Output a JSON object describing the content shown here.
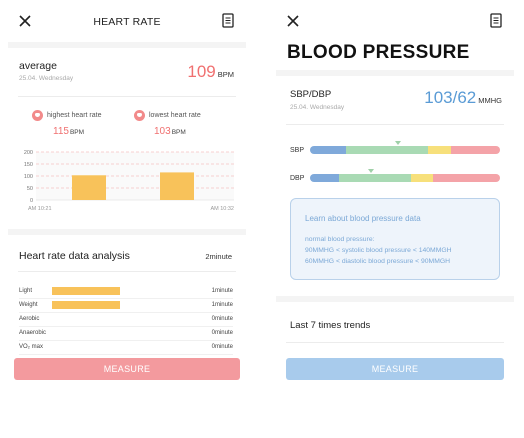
{
  "heart_rate_screen": {
    "title": "HEART RATE",
    "average_label": "average",
    "date": "25.04.   Wednesday",
    "average_value": "109",
    "average_unit": "BPM",
    "highest_label": "highest heart rate",
    "highest_value": "115",
    "highest_unit": "BPM",
    "lowest_label": "lowest heart rate",
    "lowest_value": "103",
    "lowest_unit": "BPM",
    "chart": {
      "y_ticks": [
        "200",
        "150",
        "100",
        "50",
        "0"
      ],
      "x_start": "AM 10:21",
      "x_end": "AM 10:32"
    },
    "analysis_title": "Heart rate data analysis",
    "analysis_duration": "2minute",
    "analysis_rows": [
      {
        "label": "Light",
        "value": "1minute",
        "fraction": 0.45
      },
      {
        "label": "Weight",
        "value": "1minute",
        "fraction": 0.45
      },
      {
        "label": "Aerobic",
        "value": "0minute",
        "fraction": 0
      },
      {
        "label": "Anaerobic",
        "value": "0minute",
        "fraction": 0
      },
      {
        "label": "VO₂ max",
        "value": "0minute",
        "fraction": 0
      }
    ],
    "measure_label": "MEASURE",
    "measure_color": "#f39a9e"
  },
  "blood_pressure_screen": {
    "title": "BLOOD PRESSURE",
    "sbp_dbp_label": "SBP/DBP",
    "date": "25.04.   Wednesday",
    "value": "103/62",
    "unit": "MMHG",
    "sbp_label": "SBP",
    "dbp_label": "DBP",
    "scale_colors": [
      "#7fa9da",
      "#a9dab4",
      "#f7e07b",
      "#f4a3a8"
    ],
    "info_title": "Learn about blood pressure data",
    "info_subtitle": "normal blood pressure:",
    "info_line_1": "90MMHG < systolic blood pressure < 140MMGH",
    "info_line_2": "60MMHG < diastolic blood pressure < 90MMGH",
    "trends_label": "Last 7 times trends",
    "measure_label": "MEASURE",
    "measure_color": "#a8cbec"
  },
  "chart_data": {
    "type": "bar",
    "categories": [
      "AM 10:21",
      "AM 10:32"
    ],
    "values": [
      103,
      115
    ],
    "yticks": [
      0,
      50,
      100,
      150,
      200
    ],
    "ylim": [
      0,
      200
    ],
    "grid": true
  },
  "colors": {
    "accent_red": "#f07070",
    "accent_blue": "#5a9bd5",
    "bar_yellow": "#f8c25a"
  }
}
